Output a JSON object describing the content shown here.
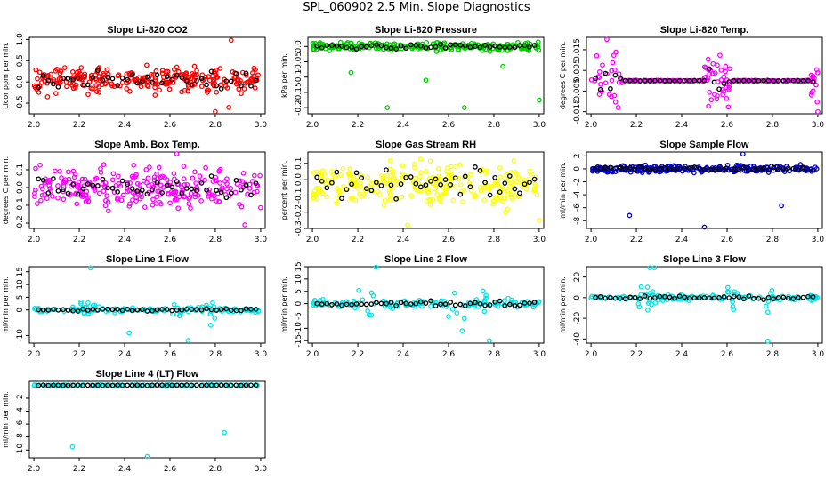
{
  "title": "SPL_060902  2.5 Min. Slope Diagnostics",
  "xaxis": {
    "ticks": [
      "2.0",
      "2.2",
      "2.4",
      "2.6",
      "2.8",
      "3.0"
    ],
    "range": [
      1.98,
      3.02
    ]
  },
  "chart_data": [
    {
      "type": "scatter",
      "title": "Slope Li-820 CO2",
      "ylabel": "Licor ppm per min.",
      "color": "#ff0000",
      "ylim": [
        -0.75,
        1.05
      ],
      "yticks": [
        "-0.5",
        "0.0",
        "0.5",
        "1.0"
      ],
      "ytick_values": [
        -0.5,
        0,
        0.5,
        1.0
      ],
      "center": 0.05,
      "spread": 0.22,
      "series": "dense",
      "outliers": [
        [
          2.87,
          0.98
        ],
        [
          2.8,
          -0.7
        ],
        [
          2.86,
          -0.6
        ],
        [
          2.06,
          -0.35
        ]
      ]
    },
    {
      "type": "scatter",
      "title": "Slope Li-820 Pressure",
      "ylabel": "kPa per min.",
      "color": "#00cc00",
      "ylim": [
        -0.22,
        0.03
      ],
      "yticks": [
        "-0.2",
        "-0.15",
        "-0.1",
        "-0.05",
        "0.0"
      ],
      "ytick_values": [
        -0.2,
        -0.15,
        -0.1,
        -0.05,
        0
      ],
      "center": 0.0,
      "spread": 0.01,
      "series": "dense",
      "outliers": [
        [
          2.17,
          -0.085
        ],
        [
          2.5,
          -0.11
        ],
        [
          2.84,
          -0.065
        ],
        [
          2.33,
          -0.2
        ],
        [
          2.67,
          -0.2
        ],
        [
          3.0,
          -0.175
        ]
      ]
    },
    {
      "type": "scatter",
      "title": "Slope Li-820 Temp.",
      "ylabel": "degrees C per min.",
      "color": "#ff00ff",
      "ylim": [
        -0.016,
        0.021
      ],
      "yticks": [
        "-0.015",
        "-0.005",
        "0.005",
        "0.015"
      ],
      "ytick_values": [
        -0.015,
        -0.005,
        0.005,
        0.015
      ],
      "center": 0.0,
      "spread": 0.004,
      "series": "segmented",
      "outliers": [
        [
          2.07,
          0.02
        ],
        [
          2.12,
          -0.013
        ],
        [
          3.0,
          -0.015
        ]
      ]
    },
    {
      "type": "scatter",
      "title": "Slope Amb. Box Temp.",
      "ylabel": "degrees C per min.",
      "color": "#ff00ff",
      "ylim": [
        -0.23,
        0.2
      ],
      "yticks": [
        "-0.2",
        "-0.1",
        "0.0",
        "0.1"
      ],
      "ytick_values": [
        -0.2,
        -0.1,
        0,
        0.1
      ],
      "center": 0.0,
      "spread": 0.08,
      "series": "dense",
      "outliers": [
        [
          2.63,
          0.19
        ],
        [
          2.93,
          -0.21
        ]
      ]
    },
    {
      "type": "scatter",
      "title": "Slope Gas Stream RH",
      "ylabel": "percent per min.",
      "color": "#ffff00",
      "ylim": [
        -0.3,
        0.17
      ],
      "yticks": [
        "-0.3",
        "-0.2",
        "-0.1",
        "0.0",
        "0.1"
      ],
      "ytick_values": [
        -0.3,
        -0.2,
        -0.1,
        0,
        0.1
      ],
      "center": -0.03,
      "spread": 0.1,
      "series": "dense",
      "outliers": [
        [
          2.42,
          -0.28
        ],
        [
          3.0,
          -0.25
        ]
      ]
    },
    {
      "type": "scatter",
      "title": "Slope Sample Flow",
      "ylabel": "ml/min per min.",
      "color": "#0000cc",
      "ylim": [
        -9.2,
        2.6
      ],
      "yticks": [
        "-8",
        "-6",
        "-4",
        "-2",
        "0",
        "2"
      ],
      "ytick_values": [
        -8,
        -6,
        -4,
        -2,
        0,
        2
      ],
      "center": 0.0,
      "spread": 0.4,
      "series": "dense",
      "outliers": [
        [
          2.17,
          -7.2
        ],
        [
          2.5,
          -9.0
        ],
        [
          2.84,
          -5.7
        ],
        [
          2.67,
          2.3
        ]
      ]
    },
    {
      "type": "scatter",
      "title": "Slope Line 1 Flow",
      "ylabel": "ml/min per min.",
      "color": "#00e5e5",
      "ylim": [
        -13,
        17
      ],
      "yticks": [
        "-10",
        "0",
        "5",
        "10",
        "15"
      ],
      "ytick_values": [
        -10,
        0,
        5,
        10,
        15
      ],
      "center": 0.0,
      "spread": 0.7,
      "series": "bursty",
      "outliers": [
        [
          2.25,
          16.5
        ],
        [
          2.42,
          -9
        ],
        [
          2.68,
          -12
        ],
        [
          2.78,
          -6
        ]
      ]
    },
    {
      "type": "scatter",
      "title": "Slope Line 2 Flow",
      "ylabel": "ml/min per min.",
      "color": "#00e5e5",
      "ylim": [
        -16,
        15
      ],
      "yticks": [
        "-15",
        "-10",
        "-5",
        "0",
        "5",
        "10",
        "15"
      ],
      "ytick_values": [
        -15,
        -10,
        -5,
        0,
        5,
        10,
        15
      ],
      "center": 0.0,
      "spread": 1.2,
      "series": "bursty",
      "outliers": [
        [
          2.28,
          14.8
        ],
        [
          2.66,
          -11
        ],
        [
          2.78,
          -15
        ],
        [
          2.67,
          -6
        ]
      ]
    },
    {
      "type": "scatter",
      "title": "Slope Line 3 Flow",
      "ylabel": "ml/min per min.",
      "color": "#00e5e5",
      "ylim": [
        -44,
        30
      ],
      "yticks": [
        "-40",
        "-20",
        "0",
        "20"
      ],
      "ytick_values": [
        -40,
        -20,
        0,
        20
      ],
      "center": 0.0,
      "spread": 2.0,
      "series": "bursty",
      "outliers": [
        [
          2.26,
          29
        ],
        [
          2.28,
          29
        ],
        [
          2.78,
          -42
        ],
        [
          2.78,
          -14
        ]
      ]
    },
    {
      "type": "scatter",
      "title": "Slope Line 4 (LT) Flow",
      "ylabel": "ml/min per min.",
      "color": "#00e5e5",
      "ylim": [
        -11.2,
        0.6
      ],
      "yticks": [
        "-10",
        "-8",
        "-6",
        "-4",
        "-2"
      ],
      "ytick_values": [
        -10,
        -8,
        -6,
        -4,
        -2
      ],
      "center": 0.0,
      "spread": 0.05,
      "series": "flat",
      "outliers": [
        [
          2.17,
          -9.5
        ],
        [
          2.5,
          -11
        ],
        [
          2.84,
          -7.3
        ]
      ]
    }
  ]
}
